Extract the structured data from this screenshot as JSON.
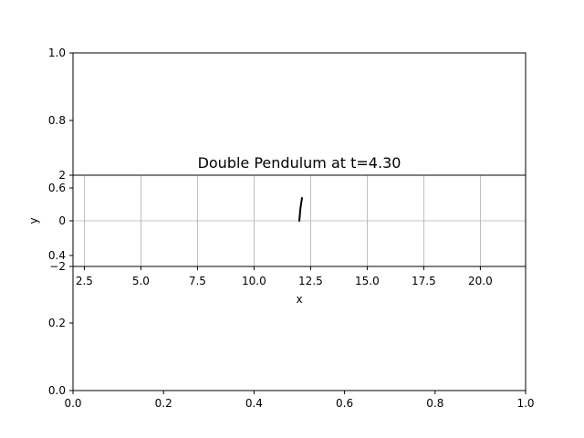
{
  "chart_data": [
    {
      "type": "line",
      "title": "",
      "xlabel": "",
      "ylabel": "",
      "xlim": [
        0.0,
        1.0
      ],
      "ylim": [
        0.0,
        1.0
      ],
      "grid": false,
      "x_ticks": [
        "0.0",
        "0.2",
        "0.4",
        "0.6",
        "0.8",
        "1.0"
      ],
      "y_ticks": [
        "0.0",
        "0.2",
        "0.4",
        "0.6",
        "0.8",
        "1.0"
      ],
      "series": []
    },
    {
      "type": "line",
      "title": "Double Pendulum at t=4.30",
      "xlabel": "x",
      "ylabel": "y",
      "xlim": [
        2.0,
        22.0
      ],
      "ylim": [
        -2.0,
        2.0
      ],
      "grid": true,
      "x_ticks": [
        "2.5",
        "5.0",
        "7.5",
        "10.0",
        "12.5",
        "15.0",
        "17.5",
        "20.0"
      ],
      "x_tick_values": [
        2.5,
        5.0,
        7.5,
        10.0,
        12.5,
        15.0,
        17.5,
        20.0
      ],
      "y_ticks": [
        "2",
        "0",
        "−2"
      ],
      "y_tick_values": [
        2,
        0,
        -2
      ],
      "series": [
        {
          "color": "#000000",
          "x": [
            12.0,
            12.05,
            12.12
          ],
          "y": [
            0.0,
            0.55,
            1.0
          ]
        }
      ]
    }
  ]
}
